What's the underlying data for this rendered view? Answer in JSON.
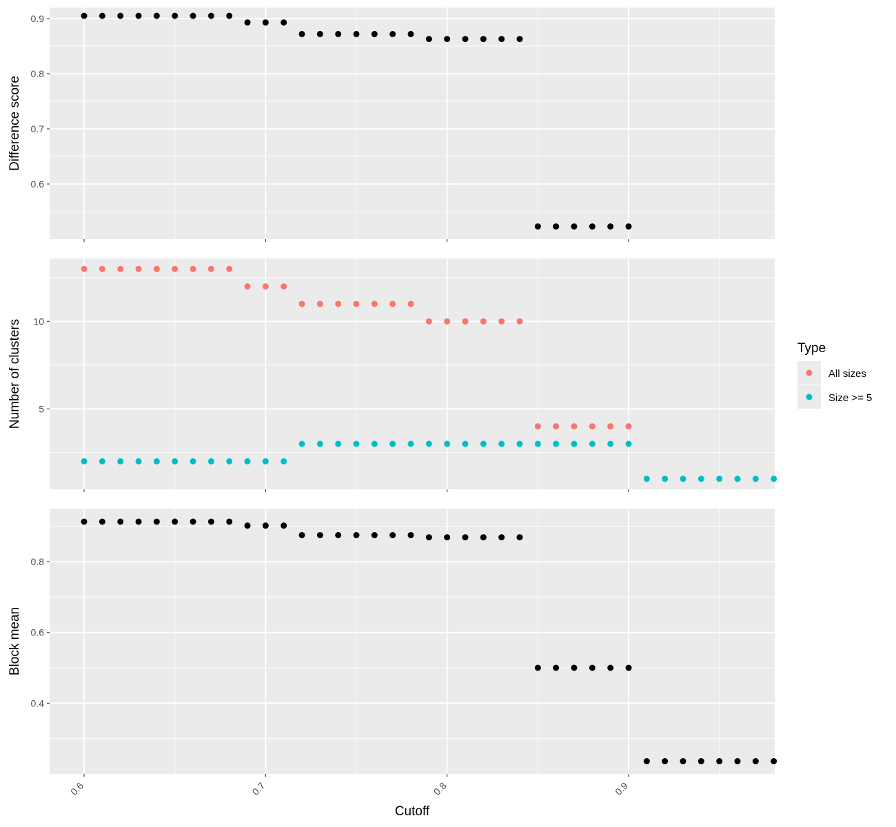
{
  "chart_data": {
    "type": "scatter",
    "x_axis": {
      "label": "Cutoff",
      "ticks": [
        0.6,
        0.7,
        0.8,
        0.9
      ],
      "tick_labels": [
        "0.6",
        "0.7",
        "0.8",
        "0.9"
      ],
      "range": [
        0.581,
        0.9805
      ]
    },
    "x": [
      0.6,
      0.61,
      0.62,
      0.63,
      0.64,
      0.65,
      0.66,
      0.67,
      0.68,
      0.69,
      0.7,
      0.71,
      0.72,
      0.73,
      0.74,
      0.75,
      0.76,
      0.77,
      0.78,
      0.79,
      0.8,
      0.81,
      0.82,
      0.83,
      0.84,
      0.85,
      0.86,
      0.87,
      0.88,
      0.89,
      0.9,
      0.91,
      0.92,
      0.93,
      0.94,
      0.95,
      0.96,
      0.97,
      0.98
    ],
    "panels": [
      {
        "ylabel": "Difference score",
        "ylim": [
          0.5,
          0.92
        ],
        "y_ticks": [
          0.6,
          0.7,
          0.8,
          0.9
        ],
        "y_tick_labels": [
          "0.6",
          "0.7",
          "0.8",
          "0.9"
        ],
        "series": [
          {
            "color": "#000000",
            "values": [
              0.905,
              0.905,
              0.905,
              0.905,
              0.905,
              0.905,
              0.905,
              0.905,
              0.905,
              0.893,
              0.893,
              0.893,
              0.872,
              0.872,
              0.872,
              0.872,
              0.872,
              0.872,
              0.872,
              0.863,
              0.863,
              0.863,
              0.863,
              0.863,
              0.863,
              0.523,
              0.523,
              0.523,
              0.523,
              0.523,
              0.523,
              null,
              null,
              null,
              null,
              null,
              null,
              null,
              null
            ]
          }
        ]
      },
      {
        "ylabel": "Number of clusters",
        "ylim": [
          0.4,
          13.6
        ],
        "y_ticks": [
          5,
          10
        ],
        "y_tick_labels": [
          "5",
          "10"
        ],
        "series": [
          {
            "name": "All sizes",
            "color": "#F8766D",
            "values": [
              13,
              13,
              13,
              13,
              13,
              13,
              13,
              13,
              13,
              12,
              12,
              12,
              11,
              11,
              11,
              11,
              11,
              11,
              11,
              10,
              10,
              10,
              10,
              10,
              10,
              4,
              4,
              4,
              4,
              4,
              4,
              null,
              null,
              null,
              null,
              null,
              null,
              null,
              null
            ]
          },
          {
            "name": "Size >= 5",
            "color": "#00BFC4",
            "values": [
              2,
              2,
              2,
              2,
              2,
              2,
              2,
              2,
              2,
              2,
              2,
              2,
              3,
              3,
              3,
              3,
              3,
              3,
              3,
              3,
              3,
              3,
              3,
              3,
              3,
              3,
              3,
              3,
              3,
              3,
              3,
              1,
              1,
              1,
              1,
              1,
              1,
              1,
              1
            ]
          }
        ]
      },
      {
        "ylabel": "Block mean",
        "ylim": [
          0.2,
          0.95
        ],
        "y_ticks": [
          0.4,
          0.6,
          0.8
        ],
        "y_tick_labels": [
          "0.4",
          "0.6",
          "0.8"
        ],
        "series": [
          {
            "color": "#000000",
            "values": [
              0.913,
              0.913,
              0.913,
              0.913,
              0.913,
              0.913,
              0.913,
              0.913,
              0.913,
              0.902,
              0.902,
              0.902,
              0.875,
              0.875,
              0.875,
              0.875,
              0.875,
              0.875,
              0.875,
              0.869,
              0.869,
              0.869,
              0.869,
              0.869,
              0.869,
              0.5,
              0.5,
              0.5,
              0.5,
              0.5,
              0.5,
              0.236,
              0.236,
              0.236,
              0.236,
              0.236,
              0.236,
              0.236,
              0.236
            ]
          }
        ]
      }
    ],
    "legend": {
      "title": "Type",
      "position": "right",
      "items": [
        {
          "label": "All sizes",
          "color": "#F8766D"
        },
        {
          "label": "Size >= 5",
          "color": "#00BFC4"
        }
      ]
    },
    "panel_background": "#EBEBEB",
    "grid": true
  }
}
